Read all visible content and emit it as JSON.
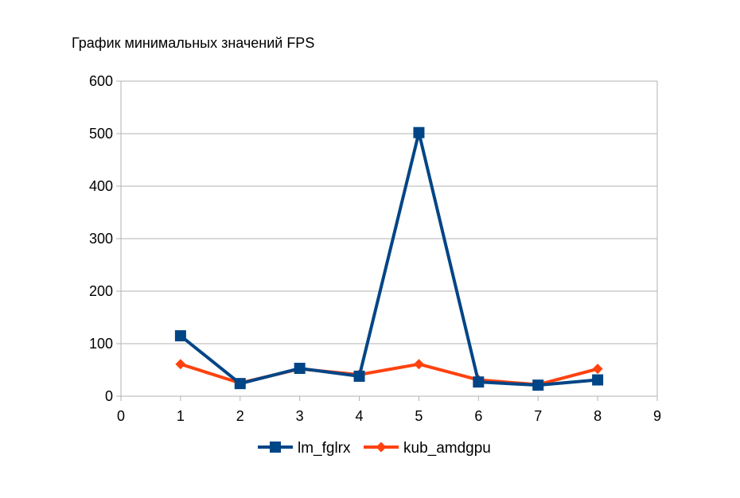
{
  "chart_data": {
    "type": "line",
    "title": "График минимальных значений FPS",
    "xlabel": "",
    "ylabel": "",
    "xlim": [
      0,
      9
    ],
    "ylim": [
      0,
      600
    ],
    "xticks": [
      "0",
      "1",
      "2",
      "3",
      "4",
      "5",
      "6",
      "7",
      "8",
      "9"
    ],
    "yticks": [
      "0",
      "100",
      "200",
      "300",
      "400",
      "500",
      "600"
    ],
    "grid": "horizontal",
    "legend_position": "bottom",
    "series": [
      {
        "name": "lm_fglrx",
        "color": "#004586",
        "marker": "square",
        "x": [
          1,
          2,
          3,
          4,
          5,
          6,
          7,
          8
        ],
        "values": [
          115,
          24,
          53,
          38,
          502,
          27,
          21,
          31
        ]
      },
      {
        "name": "kub_amdgpu",
        "color": "#ff420e",
        "marker": "diamond",
        "x": [
          1,
          2,
          3,
          4,
          5,
          6,
          7,
          8
        ],
        "values": [
          61,
          25,
          52,
          41,
          61,
          31,
          22,
          52
        ]
      }
    ]
  }
}
